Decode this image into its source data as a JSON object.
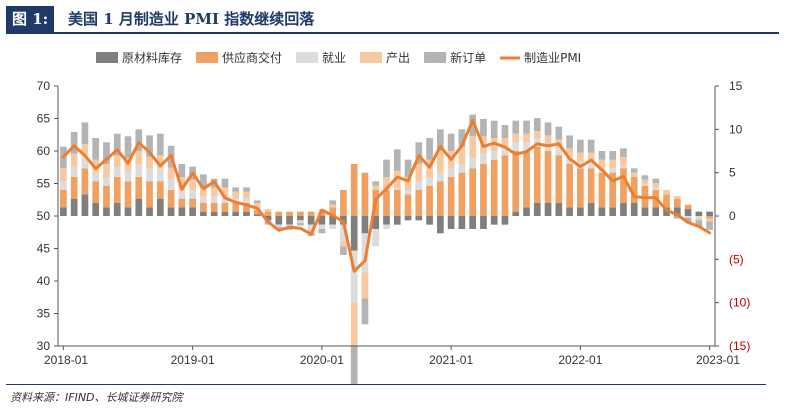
{
  "header": {
    "fig_label": "图 1:",
    "title": "美国 1 月制造业 PMI 指数继续回落"
  },
  "source": "资料来源：IFIND、长城证券研究院",
  "colors": {
    "原材料库存": "#7f7f7f",
    "供应商交付": "#f0a060",
    "就业": "#dcdcdc",
    "产出": "#f8c8a0",
    "新订单": "#b4b4b4",
    "制造业PMI": "#ed7d31",
    "neg_tick": "#c00000"
  },
  "chart_data": {
    "type": "bar",
    "stacked_bars_on": "right-axis",
    "line_on": "left-axis",
    "legend_placement": "top",
    "grid": false,
    "left_axis": {
      "min": 30,
      "max": 70,
      "ticks": [
        "30",
        "35",
        "40",
        "45",
        "50",
        "55",
        "60",
        "65",
        "70"
      ]
    },
    "right_axis": {
      "min": -15,
      "max": 15,
      "ticks": [
        "15",
        "10",
        "5",
        "0",
        "(5)",
        "(10)",
        "(15)"
      ]
    },
    "x_tick_labels": [
      "2018-01",
      "2019-01",
      "2020-01",
      "2021-01",
      "2022-01",
      "2023-01"
    ],
    "categories": [
      "2018-01",
      "2018-02",
      "2018-03",
      "2018-04",
      "2018-05",
      "2018-06",
      "2018-07",
      "2018-08",
      "2018-09",
      "2018-10",
      "2018-11",
      "2018-12",
      "2019-01",
      "2019-02",
      "2019-03",
      "2019-04",
      "2019-05",
      "2019-06",
      "2019-07",
      "2019-08",
      "2019-09",
      "2019-10",
      "2019-11",
      "2019-12",
      "2020-01",
      "2020-02",
      "2020-03",
      "2020-04",
      "2020-05",
      "2020-06",
      "2020-07",
      "2020-08",
      "2020-09",
      "2020-10",
      "2020-11",
      "2020-12",
      "2021-01",
      "2021-02",
      "2021-03",
      "2021-04",
      "2021-05",
      "2021-06",
      "2021-07",
      "2021-08",
      "2021-09",
      "2021-10",
      "2021-11",
      "2021-12",
      "2022-01",
      "2022-02",
      "2022-03",
      "2022-04",
      "2022-05",
      "2022-06",
      "2022-07",
      "2022-08",
      "2022-09",
      "2022-10",
      "2022-11",
      "2022-12",
      "2023-01"
    ],
    "series": [
      {
        "name": "原材料库存",
        "axis": "right",
        "values": [
          1.0,
          2.0,
          2.5,
          1.5,
          1.0,
          1.5,
          1.0,
          2.0,
          1.0,
          2.0,
          1.0,
          1.0,
          1.0,
          0.5,
          0.5,
          0.5,
          0.5,
          0.5,
          0.2,
          -0.5,
          -1.0,
          -1.0,
          -0.5,
          -1.0,
          -1.0,
          -1.0,
          -1.0,
          -4.0,
          -2.0,
          -1.5,
          -1.0,
          -1.0,
          -0.5,
          -0.5,
          -1.0,
          -2.0,
          -1.5,
          -1.5,
          -1.5,
          -1.5,
          -1.0,
          -1.0,
          0.5,
          1.0,
          1.5,
          1.5,
          1.5,
          1.0,
          1.0,
          1.5,
          1.0,
          1.0,
          1.5,
          1.5,
          1.0,
          1.0,
          1.0,
          1.0,
          0.8,
          0.5,
          0.5
        ]
      },
      {
        "name": "供应商交付",
        "axis": "right",
        "values": [
          2.0,
          2.5,
          3.0,
          2.5,
          2.5,
          3.0,
          3.0,
          2.5,
          3.0,
          2.0,
          2.0,
          1.0,
          1.0,
          1.0,
          1.0,
          1.0,
          1.0,
          1.0,
          0.5,
          0.5,
          0.5,
          0.5,
          0.5,
          0.5,
          0.5,
          1.0,
          3.0,
          6.0,
          5.0,
          3.0,
          3.0,
          3.0,
          2.5,
          3.0,
          3.5,
          4.0,
          4.5,
          5.0,
          5.5,
          6.0,
          6.5,
          7.0,
          7.0,
          6.5,
          6.5,
          6.0,
          5.5,
          5.0,
          4.5,
          4.0,
          4.0,
          4.0,
          4.0,
          3.0,
          2.5,
          2.0,
          1.5,
          1.0,
          0.5,
          0.0,
          -0.3
        ]
      },
      {
        "name": "就业",
        "axis": "right",
        "values": [
          1.0,
          1.2,
          1.5,
          1.0,
          1.0,
          1.2,
          1.2,
          1.5,
          1.5,
          1.5,
          1.3,
          1.0,
          1.0,
          0.8,
          0.8,
          0.8,
          0.5,
          0.5,
          0.3,
          0.0,
          -0.3,
          -0.3,
          -0.3,
          -0.5,
          -0.5,
          -0.5,
          -2.0,
          -6.0,
          -4.5,
          -2.0,
          -0.5,
          0.2,
          0.5,
          1.0,
          1.0,
          1.0,
          1.0,
          1.0,
          1.2,
          1.2,
          1.0,
          1.0,
          1.0,
          1.0,
          1.0,
          0.8,
          0.8,
          0.8,
          0.8,
          0.8,
          0.5,
          0.5,
          0.3,
          0.0,
          0.2,
          0.3,
          0.0,
          0.0,
          -0.2,
          -0.3,
          0.0
        ]
      },
      {
        "name": "产出",
        "axis": "right",
        "values": [
          1.5,
          1.5,
          1.3,
          1.5,
          1.5,
          1.3,
          1.5,
          1.5,
          1.3,
          1.5,
          1.3,
          1.5,
          1.2,
          1.0,
          1.0,
          1.0,
          0.8,
          0.8,
          0.5,
          0.3,
          0.0,
          0.0,
          0.0,
          -0.3,
          0.3,
          0.3,
          -0.5,
          -5.0,
          -3.0,
          0.5,
          1.5,
          2.0,
          1.5,
          2.0,
          2.0,
          2.5,
          2.0,
          2.0,
          2.5,
          2.0,
          1.5,
          1.0,
          1.0,
          1.0,
          0.8,
          1.0,
          1.0,
          1.0,
          1.0,
          1.0,
          1.0,
          1.0,
          1.0,
          0.5,
          0.5,
          0.5,
          0.5,
          0.3,
          0.0,
          -0.2,
          -0.3
        ]
      },
      {
        "name": "新订单",
        "axis": "right",
        "values": [
          2.5,
          2.5,
          2.5,
          2.5,
          2.5,
          2.5,
          2.5,
          2.5,
          2.5,
          2.5,
          2.5,
          1.5,
          1.5,
          1.5,
          1.0,
          1.0,
          0.5,
          0.5,
          0.3,
          -0.5,
          -0.3,
          -0.3,
          -0.3,
          -0.5,
          -0.5,
          0.5,
          -1.0,
          -5.0,
          -3.0,
          0.5,
          2.0,
          2.5,
          2.0,
          2.5,
          2.5,
          2.5,
          2.0,
          2.0,
          2.5,
          2.0,
          2.0,
          1.5,
          1.5,
          1.5,
          1.5,
          1.5,
          1.5,
          1.5,
          1.5,
          1.5,
          1.0,
          1.0,
          1.0,
          0.5,
          0.5,
          0.5,
          0.0,
          -0.3,
          -0.5,
          -0.8,
          -1.0
        ]
      },
      {
        "name": "制造业PMI",
        "axis": "left",
        "type": "line",
        "values": [
          59.1,
          60.8,
          59.3,
          57.3,
          58.7,
          60.2,
          58.1,
          61.3,
          59.8,
          57.7,
          59.3,
          54.1,
          56.6,
          54.2,
          55.3,
          52.8,
          52.1,
          51.7,
          51.2,
          49.1,
          47.8,
          48.3,
          48.1,
          47.2,
          50.9,
          50.1,
          49.1,
          41.5,
          43.1,
          52.6,
          54.2,
          56.0,
          55.4,
          59.3,
          57.5,
          60.7,
          58.7,
          60.8,
          64.7,
          60.7,
          61.2,
          60.6,
          59.5,
          59.9,
          61.1,
          60.8,
          61.1,
          58.8,
          57.6,
          58.6,
          57.1,
          55.4,
          56.1,
          53.0,
          52.8,
          52.8,
          50.9,
          50.2,
          49.0,
          48.4,
          47.4
        ]
      }
    ]
  }
}
